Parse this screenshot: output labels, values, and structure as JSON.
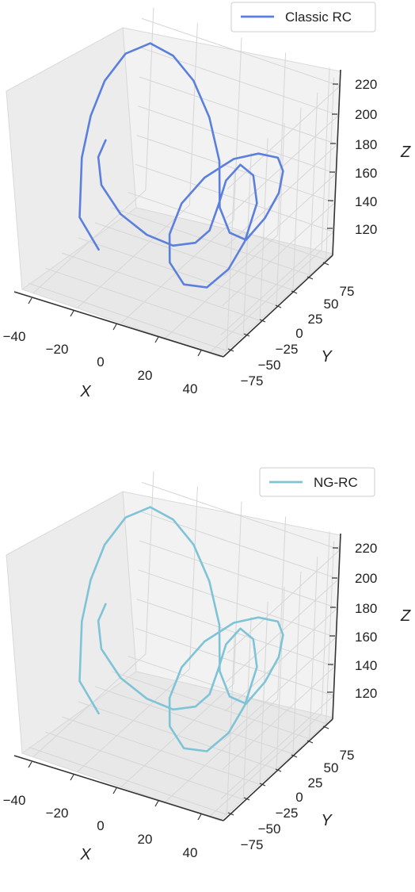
{
  "chart_data": [
    {
      "type": "line",
      "projection": "3d",
      "title": "",
      "xlabel": "X",
      "ylabel": "Y",
      "zlabel": "Z",
      "xlim": [
        -45,
        45
      ],
      "ylim": [
        -85,
        85
      ],
      "zlim": [
        105,
        230
      ],
      "xticks": [
        "−40",
        "−20",
        "0",
        "20",
        "40"
      ],
      "yticks": [
        "−75",
        "−50",
        "−25",
        "0",
        "25",
        "50",
        "75"
      ],
      "zticks": [
        "120",
        "140",
        "160",
        "180",
        "200",
        "220"
      ],
      "grid": true,
      "legend_position": "top-right",
      "series": [
        {
          "name": "Classic RC",
          "color": "#5b7fdc",
          "x": [
            -29.3,
            -36.0,
            -41.7,
            -43.2,
            -42.1,
            -38.1,
            -31.2,
            -23.4,
            -15.5,
            -8.3,
            -2.4,
            1.6,
            8.8,
            17.8,
            25.5,
            32.4,
            38.0,
            40.2,
            38.7,
            32.0,
            22.6,
            14.0,
            8.7,
            7.6,
            12.1,
            19.8,
            27.2,
            32.0,
            31.2,
            26.2,
            18.4,
            11.2,
            7.1,
            4.7,
            -0.5,
            -8.5,
            -17.8,
            -26.2,
            -31.4,
            -31.9,
            -28.5
          ],
          "y": [
            -22.4,
            -31.2,
            -11.7,
            4.6,
            20.4,
            37.3,
            51.4,
            60.6,
            66.8,
            68.9,
            66.9,
            56.6,
            48.7,
            43.3,
            44.7,
            40.5,
            25.9,
            9.1,
            -16.5,
            -31.5,
            -43.1,
            -47.2,
            -45.5,
            -39.4,
            -31.5,
            -22.1,
            -15.4,
            -8.6,
            10.8,
            20.8,
            27.1,
            31.0,
            35.5,
            31.3,
            28.1,
            21.4,
            12.1,
            -1.4,
            -15.2,
            -20.3,
            -21.8
          ],
          "z": [
            114.3,
            136.7,
            166.5,
            187.6,
            205.7,
            219.3,
            224.1,
            215.8,
            200.1,
            177.8,
            151.7,
            126.3,
            115.9,
            117.8,
            136.3,
            158.7,
            182.6,
            199.9,
            212.6,
            211.7,
            198.9,
            178.5,
            154.0,
            131.6,
            115.5,
            113.5,
            127.0,
            145.6,
            163.4,
            175.8,
            176.4,
            160.3,
            140.2,
            122.6,
            112.8,
            109.5,
            116.0,
            131.6,
            154.5,
            175.6,
            189.5
          ]
        },
        {
          "name": "NG-RC",
          "color": "#7fc3d7",
          "x": [
            -29.3,
            -36.0,
            -41.7,
            -43.2,
            -42.1,
            -38.1,
            -31.2,
            -23.4,
            -15.5,
            -8.3,
            -2.4,
            1.6,
            8.8,
            17.8,
            25.5,
            32.4,
            38.0,
            40.2,
            38.7,
            32.0,
            22.6,
            14.0,
            8.7,
            7.6,
            12.1,
            19.8,
            27.2,
            32.0,
            31.2,
            26.2,
            18.4,
            11.2,
            7.1,
            4.7,
            -0.5,
            -8.5,
            -17.8,
            -26.2,
            -31.4,
            -31.9,
            -28.5
          ],
          "y": [
            -22.4,
            -31.2,
            -11.7,
            4.6,
            20.4,
            37.3,
            51.4,
            60.6,
            66.8,
            68.9,
            66.9,
            56.6,
            48.7,
            43.3,
            44.7,
            40.5,
            25.9,
            9.1,
            -16.5,
            -31.5,
            -43.1,
            -47.2,
            -45.5,
            -39.4,
            -31.5,
            -22.1,
            -15.4,
            -8.6,
            10.8,
            20.8,
            27.1,
            31.0,
            35.5,
            31.3,
            28.1,
            21.4,
            12.1,
            -1.4,
            -15.2,
            -20.3,
            -21.8
          ],
          "z": [
            114.3,
            136.7,
            166.5,
            187.6,
            205.7,
            219.3,
            224.1,
            215.8,
            200.1,
            177.8,
            151.7,
            126.3,
            115.9,
            117.8,
            136.3,
            158.7,
            182.6,
            199.9,
            212.6,
            211.7,
            198.9,
            178.5,
            154.0,
            131.6,
            115.5,
            113.5,
            127.0,
            145.6,
            163.4,
            175.8,
            176.4,
            160.3,
            140.2,
            122.6,
            112.8,
            109.5,
            116.0,
            131.6,
            154.5,
            175.6,
            189.5
          ]
        }
      ]
    }
  ]
}
